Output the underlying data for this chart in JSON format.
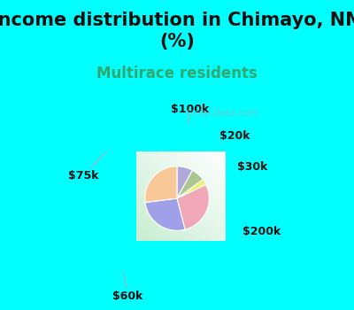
{
  "title": "Income distribution in Chimayo, NM\n(%)",
  "subtitle": "Multirace residents",
  "labels": [
    "$100k",
    "$20k",
    "$30k",
    "$200k",
    "$60k",
    "$75k"
  ],
  "sizes": [
    8,
    7,
    3,
    28,
    27,
    27
  ],
  "colors": [
    "#b0a8d8",
    "#a8c890",
    "#f0f070",
    "#f0a8b8",
    "#a0a0e8",
    "#f8c898"
  ],
  "title_fontsize": 15,
  "subtitle_fontsize": 12,
  "subtitle_color": "#30a870",
  "title_color": "#111111",
  "bg_color_top": "#00ffff",
  "watermark": "©city-Data.com",
  "label_fontsize": 9,
  "label_color": "#111111"
}
